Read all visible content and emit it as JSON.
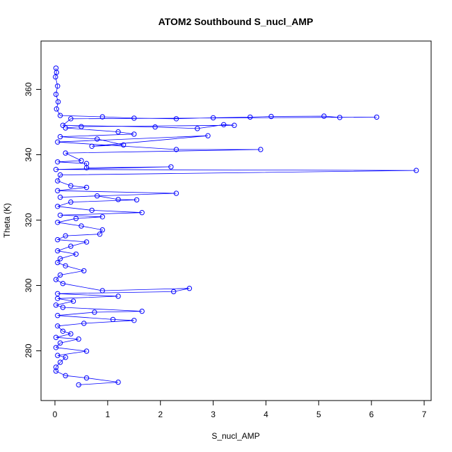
{
  "chart_data": {
    "type": "scatter",
    "title": "ATOM2 Southbound S_nucl_AMP",
    "xlabel": "S_nucl_AMP",
    "ylabel": "Theta (K)",
    "xlim": [
      0,
      7
    ],
    "ylim": [
      265,
      375
    ],
    "xticks": [
      0,
      1,
      2,
      3,
      4,
      5,
      6,
      7
    ],
    "yticks": [
      280,
      300,
      320,
      340,
      360
    ],
    "grid": false,
    "legend": "none",
    "series_color": "#0000ff",
    "marker": "open-circle",
    "connected": true,
    "series": [
      {
        "values": [
          [
            0.02,
            366.5
          ],
          [
            0.03,
            365.2
          ],
          [
            0.01,
            363.8
          ],
          [
            0.05,
            361.0
          ],
          [
            0.02,
            358.5
          ],
          [
            0.06,
            356.2
          ],
          [
            0.03,
            354.0
          ],
          [
            0.1,
            352.0
          ],
          [
            0.9,
            351.6
          ],
          [
            1.5,
            351.2
          ],
          [
            2.3,
            351.0
          ],
          [
            3.0,
            351.3
          ],
          [
            3.7,
            351.5
          ],
          [
            4.1,
            351.7
          ],
          [
            5.1,
            351.8
          ],
          [
            5.4,
            351.4
          ],
          [
            6.1,
            351.5
          ],
          [
            0.3,
            351.0
          ],
          [
            0.15,
            349.0
          ],
          [
            1.9,
            348.5
          ],
          [
            2.7,
            348.0
          ],
          [
            3.2,
            349.2
          ],
          [
            3.4,
            349.0
          ],
          [
            0.5,
            348.6
          ],
          [
            0.2,
            348.2
          ],
          [
            1.2,
            347.0
          ],
          [
            1.5,
            346.3
          ],
          [
            0.1,
            345.5
          ],
          [
            0.8,
            344.8
          ],
          [
            1.3,
            343.0
          ],
          [
            0.7,
            342.6
          ],
          [
            2.9,
            345.8
          ],
          [
            0.05,
            343.9
          ],
          [
            2.3,
            341.6
          ],
          [
            3.9,
            341.6
          ],
          [
            0.2,
            340.5
          ],
          [
            0.5,
            338.2
          ],
          [
            0.05,
            337.8
          ],
          [
            0.6,
            337.3
          ],
          [
            0.6,
            336.0
          ],
          [
            2.2,
            336.3
          ],
          [
            0.02,
            335.5
          ],
          [
            6.85,
            335.2
          ],
          [
            0.1,
            333.8
          ],
          [
            0.05,
            332.0
          ],
          [
            0.3,
            330.5
          ],
          [
            0.6,
            330.0
          ],
          [
            0.05,
            329.0
          ],
          [
            2.3,
            328.2
          ],
          [
            0.1,
            327.0
          ],
          [
            0.8,
            327.4
          ],
          [
            1.2,
            326.3
          ],
          [
            1.55,
            326.2
          ],
          [
            0.3,
            325.5
          ],
          [
            0.05,
            324.2
          ],
          [
            0.7,
            323.0
          ],
          [
            1.65,
            322.3
          ],
          [
            0.1,
            321.5
          ],
          [
            0.9,
            321.0
          ],
          [
            0.4,
            320.5
          ],
          [
            0.05,
            319.3
          ],
          [
            0.5,
            318.2
          ],
          [
            0.9,
            317.0
          ],
          [
            0.85,
            315.7
          ],
          [
            0.2,
            315.2
          ],
          [
            0.05,
            314.0
          ],
          [
            0.6,
            313.3
          ],
          [
            0.3,
            312.0
          ],
          [
            0.05,
            310.6
          ],
          [
            0.4,
            309.6
          ],
          [
            0.1,
            308.2
          ],
          [
            0.05,
            307.0
          ],
          [
            0.2,
            306.0
          ],
          [
            0.55,
            304.5
          ],
          [
            0.1,
            303.2
          ],
          [
            0.02,
            301.8
          ],
          [
            0.15,
            300.6
          ],
          [
            0.9,
            298.4
          ],
          [
            2.55,
            299.1
          ],
          [
            2.25,
            298.1
          ],
          [
            0.05,
            297.5
          ],
          [
            1.2,
            296.7
          ],
          [
            0.05,
            296.0
          ],
          [
            0.35,
            295.2
          ],
          [
            0.02,
            294.0
          ],
          [
            0.15,
            293.3
          ],
          [
            1.65,
            292.1
          ],
          [
            0.75,
            291.8
          ],
          [
            0.05,
            290.8
          ],
          [
            1.1,
            289.6
          ],
          [
            1.5,
            289.3
          ],
          [
            0.55,
            288.4
          ],
          [
            0.05,
            287.6
          ],
          [
            0.15,
            286.0
          ],
          [
            0.3,
            285.2
          ],
          [
            0.02,
            284.1
          ],
          [
            0.45,
            283.6
          ],
          [
            0.1,
            282.4
          ],
          [
            0.02,
            281.0
          ],
          [
            0.6,
            279.9
          ],
          [
            0.05,
            278.6
          ],
          [
            0.2,
            278.0
          ],
          [
            0.1,
            276.5
          ],
          [
            0.02,
            275.0
          ],
          [
            0.02,
            273.8
          ],
          [
            0.2,
            272.4
          ],
          [
            0.6,
            271.7
          ],
          [
            1.2,
            270.4
          ],
          [
            0.45,
            269.6
          ]
        ]
      }
    ]
  }
}
